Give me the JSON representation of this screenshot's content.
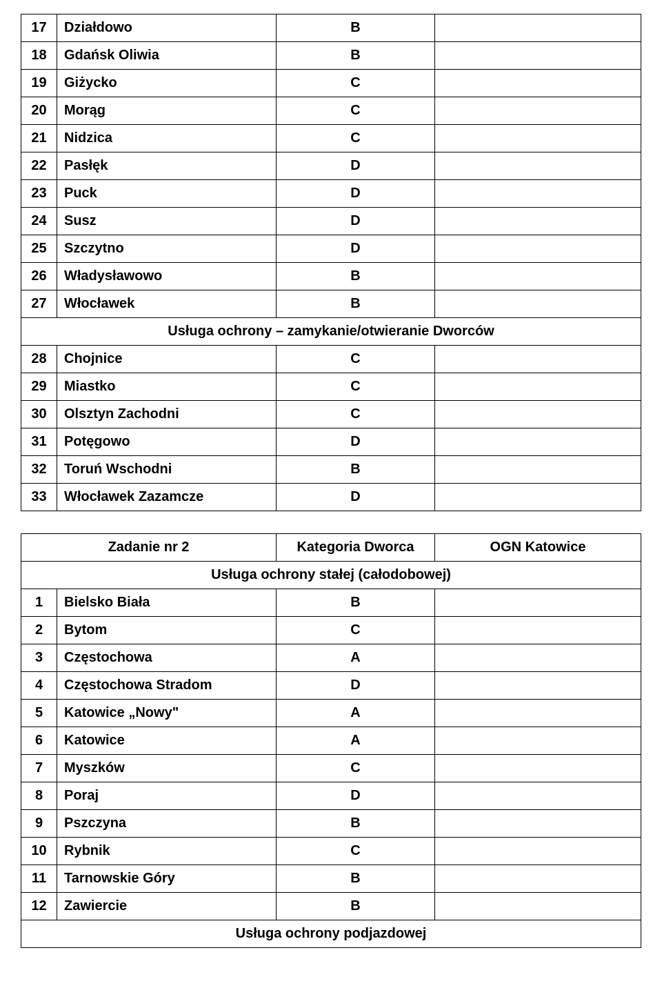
{
  "table1": {
    "rows": [
      {
        "num": "17",
        "name": "Działdowo",
        "cat": "B",
        "note": ""
      },
      {
        "num": "18",
        "name": "Gdańsk Oliwia",
        "cat": "B",
        "note": ""
      },
      {
        "num": "19",
        "name": "Giżycko",
        "cat": "C",
        "note": ""
      },
      {
        "num": "20",
        "name": "Morąg",
        "cat": "C",
        "note": ""
      },
      {
        "num": "21",
        "name": "Nidzica",
        "cat": "C",
        "note": ""
      },
      {
        "num": "22",
        "name": "Pasłęk",
        "cat": "D",
        "note": ""
      },
      {
        "num": "23",
        "name": "Puck",
        "cat": "D",
        "note": ""
      },
      {
        "num": "24",
        "name": "Susz",
        "cat": "D",
        "note": ""
      },
      {
        "num": "25",
        "name": "Szczytno",
        "cat": "D",
        "note": ""
      },
      {
        "num": "26",
        "name": "Władysławowo",
        "cat": "B",
        "note": ""
      },
      {
        "num": "27",
        "name": "Włocławek",
        "cat": "B",
        "note": ""
      }
    ],
    "section_header": "Usługa ochrony – zamykanie/otwieranie Dworców",
    "rows2": [
      {
        "num": "28",
        "name": "Chojnice",
        "cat": "C",
        "note": ""
      },
      {
        "num": "29",
        "name": "Miastko",
        "cat": "C",
        "note": ""
      },
      {
        "num": "30",
        "name": "Olsztyn Zachodni",
        "cat": "C",
        "note": ""
      },
      {
        "num": "31",
        "name": "Potęgowo",
        "cat": "D",
        "note": ""
      },
      {
        "num": "32",
        "name": "Toruń Wschodni",
        "cat": "B",
        "note": ""
      },
      {
        "num": "33",
        "name": "Włocławek Zazamcze",
        "cat": "D",
        "note": ""
      }
    ]
  },
  "table2": {
    "header": {
      "task_label": "Zadanie nr 2",
      "cat_label": "Kategoria Dworca",
      "ogn_label": "OGN Katowice"
    },
    "section_header1": "Usługa ochrony stałej (całodobowej)",
    "rows": [
      {
        "num": "1",
        "name": "Bielsko Biała",
        "cat": "B",
        "note": ""
      },
      {
        "num": "2",
        "name": "Bytom",
        "cat": "C",
        "note": ""
      },
      {
        "num": "3",
        "name": "Częstochowa",
        "cat": "A",
        "note": ""
      },
      {
        "num": "4",
        "name": "Częstochowa Stradom",
        "cat": "D",
        "note": ""
      },
      {
        "num": "5",
        "name": "Katowice „Nowy\"",
        "cat": "A",
        "note": ""
      },
      {
        "num": "6",
        "name": "Katowice",
        "cat": "A",
        "note": ""
      },
      {
        "num": "7",
        "name": "Myszków",
        "cat": "C",
        "note": ""
      },
      {
        "num": "8",
        "name": "Poraj",
        "cat": "D",
        "note": ""
      },
      {
        "num": "9",
        "name": "Pszczyna",
        "cat": "B",
        "note": ""
      },
      {
        "num": "10",
        "name": "Rybnik",
        "cat": "C",
        "note": ""
      },
      {
        "num": "11",
        "name": "Tarnowskie Góry",
        "cat": "B",
        "note": ""
      },
      {
        "num": "12",
        "name": "Zawiercie",
        "cat": "B",
        "note": ""
      }
    ],
    "section_header2": "Usługa ochrony podjazdowej"
  }
}
